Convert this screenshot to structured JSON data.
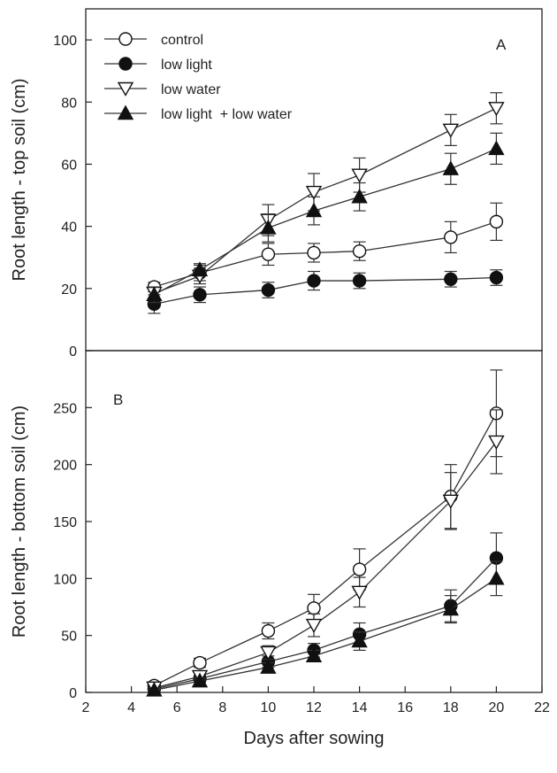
{
  "chart_data": {
    "type": "line",
    "x_label": "Days after sowing",
    "x_ticks": [
      2,
      4,
      6,
      8,
      10,
      12,
      14,
      16,
      18,
      20,
      22
    ],
    "xlim": [
      2,
      22
    ],
    "colors": {
      "axis": "#222222",
      "line": "#333333",
      "open_fill": "#ffffff",
      "closed_fill": "#111111"
    },
    "legend": {
      "placement": "top-left of panel A",
      "entries": [
        {
          "label": "control",
          "marker": "circle-open"
        },
        {
          "label": "low light",
          "marker": "circle-filled"
        },
        {
          "label": "low water",
          "marker": "triangle-down-open"
        },
        {
          "label": "low light  + low water",
          "marker": "triangle-up-filled"
        }
      ]
    },
    "panels": [
      {
        "label": "A",
        "ylabel": "Root length - top soil (cm)",
        "ylim": [
          0,
          110
        ],
        "y_ticks": [
          0,
          20,
          40,
          60,
          80,
          100
        ],
        "x": [
          5,
          7,
          10,
          12,
          14,
          18,
          20
        ],
        "series": [
          {
            "name": "control",
            "marker": "circle-open",
            "values": [
              20.5,
              25,
              31,
              31.5,
              32,
              36.5,
              41.5
            ],
            "errors": [
              1.5,
              2.5,
              3.5,
              3,
              3,
              5,
              6
            ]
          },
          {
            "name": "low light",
            "marker": "circle-filled",
            "values": [
              15,
              18,
              19.5,
              22.5,
              22.5,
              23,
              23.5
            ],
            "errors": [
              3,
              2.5,
              2.5,
              3,
              2.5,
              2.5,
              2.5
            ]
          },
          {
            "name": "low water",
            "marker": "triangle-down-open",
            "values": [
              18.5,
              24,
              42,
              51,
              56.5,
              71,
              78
            ],
            "errors": [
              2,
              2.5,
              5,
              6,
              5.5,
              5,
              5
            ]
          },
          {
            "name": "low light  + low water",
            "marker": "triangle-up-filled",
            "values": [
              18,
              26,
              39.5,
              45,
              49.5,
              58.5,
              65
            ],
            "errors": [
              2.5,
              2,
              4.5,
              4.5,
              4.5,
              5,
              5
            ]
          }
        ]
      },
      {
        "label": "B",
        "ylabel": "Root length - bottom soil (cm)",
        "ylim": [
          0,
          300
        ],
        "y_ticks": [
          0,
          50,
          100,
          150,
          200,
          250
        ],
        "x": [
          5,
          7,
          10,
          12,
          14,
          18,
          20
        ],
        "series": [
          {
            "name": "control",
            "marker": "circle-open",
            "values": [
              6,
              26,
              54,
              74,
              108,
              172,
              245
            ],
            "errors": [
              3,
              4,
              7,
              12,
              18,
              28,
              38
            ]
          },
          {
            "name": "low light",
            "marker": "circle-filled",
            "values": [
              3,
              12,
              27,
              37,
              51,
              76,
              118
            ],
            "errors": [
              2,
              3,
              5,
              6,
              10,
              14,
              22
            ]
          },
          {
            "name": "low water",
            "marker": "triangle-down-open",
            "values": [
              4,
              14,
              35,
              59,
              88,
              168,
              220
            ],
            "errors": [
              2,
              3,
              6,
              10,
              13,
              25,
              28
            ]
          },
          {
            "name": "low light  + low water",
            "marker": "triangle-up-filled",
            "values": [
              2,
              10,
              22,
              32,
              45,
              73,
              100
            ],
            "errors": [
              2,
              3,
              4,
              5,
              8,
              12,
              15
            ]
          }
        ]
      }
    ]
  }
}
